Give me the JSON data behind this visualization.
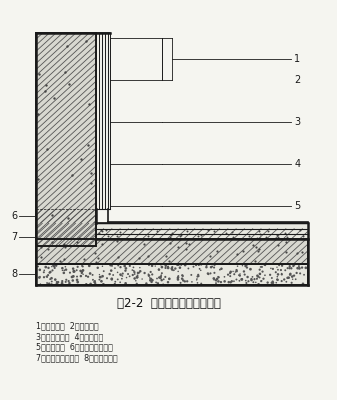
{
  "title": "图2-2  防水涂料外防内涂做法",
  "legend_lines": [
    "1－结构墙体  2砂浆保护层",
    "3－涂料防水层  4砂浆找平层",
    "5－水保护墙  6－涂料防水加强层",
    "7－涂料防水加强层  8－混凝土垫层"
  ],
  "bg_color": "#f5f5f0",
  "line_color": "#1a1a1a",
  "hatch_dark": "#444444",
  "hatch_light": "#888888"
}
